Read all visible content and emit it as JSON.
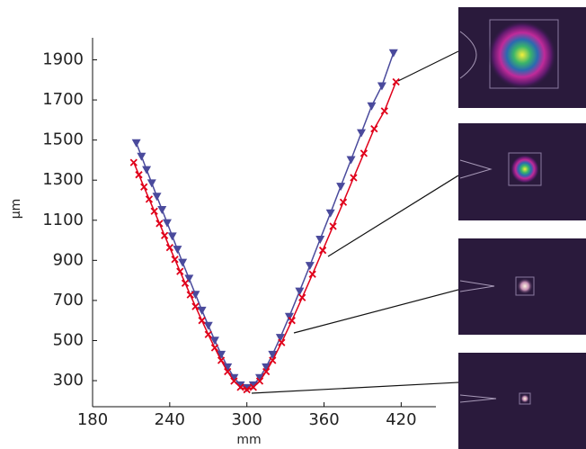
{
  "chart_data": {
    "type": "line",
    "x_label": "mm",
    "y_label": "µm",
    "xlim": [
      180,
      447
    ],
    "ylim": [
      170,
      2010
    ],
    "xticks": [
      180,
      240,
      300,
      360,
      420
    ],
    "yticks": [
      300,
      500,
      700,
      900,
      1100,
      1300,
      1500,
      1700,
      1900
    ],
    "series": [
      {
        "color": "#4a4a9c",
        "marker": "triangle-down",
        "x": [
          214,
          218,
          222,
          226,
          230,
          234,
          238,
          242,
          246,
          250,
          255,
          260,
          265,
          270,
          275,
          280,
          285,
          290,
          295,
          300,
          305,
          310,
          315,
          320,
          326,
          333,
          341,
          349,
          357,
          365,
          373,
          381,
          389,
          397,
          405,
          414
        ],
        "values": [
          1486,
          1419,
          1352,
          1286,
          1219,
          1153,
          1087,
          1021,
          955,
          890,
          810,
          730,
          651,
          575,
          501,
          431,
          368,
          315,
          278,
          265,
          278,
          315,
          368,
          431,
          515,
          620,
          746,
          874,
          1005,
          1136,
          1269,
          1402,
          1536,
          1670,
          1770,
          1935
        ]
      },
      {
        "color": "#e0001a",
        "marker": "x",
        "x": [
          212,
          216,
          220,
          224,
          228,
          232,
          236,
          240,
          244,
          248,
          252,
          256,
          260,
          265,
          270,
          275,
          280,
          285,
          290,
          295,
          300,
          305,
          310,
          315,
          320,
          327,
          335,
          343,
          351,
          359,
          367,
          375,
          383,
          391,
          399,
          407,
          416
        ],
        "values": [
          1388,
          1327,
          1266,
          1205,
          1145,
          1084,
          1024,
          964,
          905,
          845,
          786,
          728,
          670,
          600,
          530,
          464,
          401,
          345,
          298,
          267,
          255,
          267,
          298,
          345,
          401,
          490,
          600,
          714,
          831,
          950,
          1070,
          1190,
          1312,
          1434,
          1556,
          1645,
          1790
        ]
      }
    ]
  }
}
